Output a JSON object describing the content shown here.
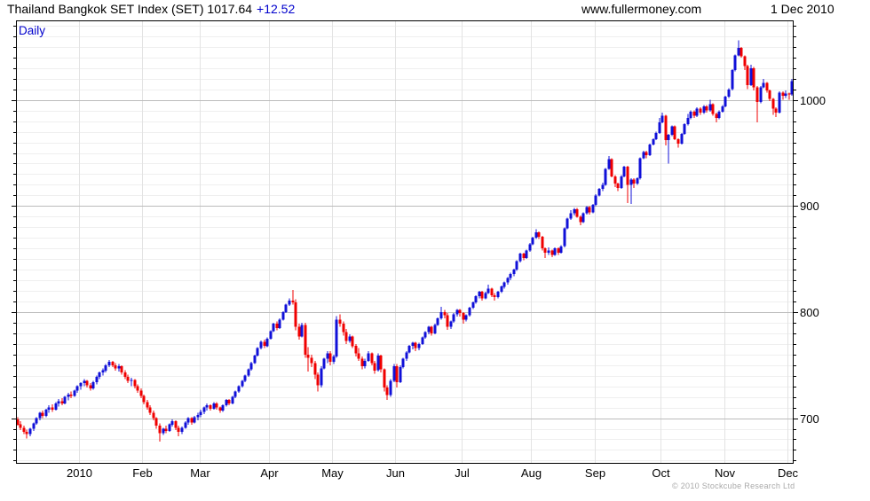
{
  "header": {
    "title_main": "Thailand Bangkok SET Index (SET) 1017.64",
    "title_change": "+12.52",
    "site": "www.fullermoney.com",
    "date": "1 Dec 2010"
  },
  "chart": {
    "interval_label": "Daily",
    "copyright": "© 2010 Stockcube Research Ltd"
  },
  "chart_data": {
    "type": "candlestick",
    "title": "Thailand Bangkok SET Index (SET)",
    "interval": "Daily",
    "last_close": 1017.64,
    "change": 12.52,
    "legend_position": "none",
    "grid": true,
    "y_axis": {
      "side": "right",
      "min": 657,
      "max": 1075,
      "major_ticks": [
        700,
        800,
        900,
        1000
      ],
      "minor_step": 10
    },
    "x_axis": {
      "labels": [
        "2010",
        "Feb",
        "Mar",
        "Apr",
        "May",
        "Jun",
        "Jul",
        "Aug",
        "Sep",
        "Oct",
        "Nov",
        "Dec"
      ],
      "days_per_month": [
        20,
        20,
        18,
        22,
        20,
        20,
        21,
        22,
        20,
        21,
        20,
        20,
        2
      ]
    },
    "colors": {
      "up": "#1010d8",
      "down": "#f00000",
      "grid_minor": "#efefef",
      "grid_vertical": "#e3e3e3",
      "grid_major": "#bcbcbc",
      "border": "#000000",
      "label": "#000000"
    },
    "ohlc": [
      [
        699,
        701,
        693,
        694
      ],
      [
        694,
        697,
        689,
        691
      ],
      [
        691,
        693,
        685,
        687
      ],
      [
        687,
        689,
        681,
        685
      ],
      [
        685,
        691,
        683,
        690
      ],
      [
        690,
        696,
        688,
        695
      ],
      [
        695,
        701,
        694,
        700
      ],
      [
        700,
        706,
        698,
        705
      ],
      [
        705,
        707,
        700,
        702
      ],
      [
        702,
        709,
        701,
        708
      ],
      [
        708,
        712,
        705,
        710
      ],
      [
        710,
        713,
        706,
        708
      ],
      [
        708,
        715,
        707,
        714
      ],
      [
        714,
        718,
        711,
        716
      ],
      [
        716,
        719,
        712,
        714
      ],
      [
        714,
        721,
        713,
        720
      ],
      [
        720,
        724,
        717,
        722
      ],
      [
        722,
        725,
        719,
        721
      ],
      [
        721,
        727,
        720,
        726
      ],
      [
        726,
        731,
        724,
        730
      ],
      [
        730,
        734,
        727,
        733
      ],
      [
        733,
        737,
        730,
        735
      ],
      [
        735,
        736,
        729,
        731
      ],
      [
        731,
        733,
        726,
        728
      ],
      [
        728,
        735,
        727,
        734
      ],
      [
        734,
        740,
        732,
        739
      ],
      [
        739,
        744,
        737,
        743
      ],
      [
        743,
        747,
        740,
        745
      ],
      [
        745,
        751,
        743,
        750
      ],
      [
        750,
        755,
        748,
        753
      ],
      [
        753,
        754,
        748,
        750
      ],
      [
        750,
        752,
        745,
        747
      ],
      [
        747,
        751,
        744,
        749
      ],
      [
        749,
        750,
        741,
        743
      ],
      [
        743,
        745,
        737,
        739
      ],
      [
        739,
        741,
        733,
        735
      ],
      [
        735,
        738,
        730,
        736
      ],
      [
        736,
        737,
        728,
        730
      ],
      [
        730,
        732,
        724,
        726
      ],
      [
        726,
        728,
        719,
        721
      ],
      [
        721,
        722,
        713,
        715
      ],
      [
        715,
        717,
        708,
        710
      ],
      [
        710,
        712,
        703,
        705
      ],
      [
        705,
        707,
        698,
        700
      ],
      [
        700,
        701,
        690,
        693
      ],
      [
        693,
        695,
        678,
        686
      ],
      [
        686,
        691,
        684,
        690
      ],
      [
        690,
        693,
        686,
        688
      ],
      [
        688,
        695,
        687,
        694
      ],
      [
        694,
        699,
        692,
        697
      ],
      [
        697,
        698,
        689,
        691
      ],
      [
        691,
        693,
        683,
        687
      ],
      [
        687,
        692,
        685,
        691
      ],
      [
        691,
        697,
        690,
        696
      ],
      [
        696,
        701,
        694,
        700
      ],
      [
        700,
        701,
        694,
        696
      ],
      [
        696,
        702,
        695,
        701
      ],
      [
        701,
        705,
        698,
        703
      ],
      [
        703,
        708,
        701,
        706
      ],
      [
        706,
        711,
        704,
        710
      ],
      [
        710,
        714,
        707,
        712
      ],
      [
        712,
        713,
        707,
        709
      ],
      [
        709,
        715,
        708,
        714
      ],
      [
        714,
        715,
        708,
        710
      ],
      [
        710,
        711,
        705,
        707
      ],
      [
        707,
        713,
        706,
        712
      ],
      [
        712,
        718,
        711,
        717
      ],
      [
        717,
        718,
        712,
        714
      ],
      [
        714,
        721,
        713,
        720
      ],
      [
        720,
        726,
        719,
        725
      ],
      [
        725,
        731,
        724,
        730
      ],
      [
        730,
        736,
        729,
        735
      ],
      [
        735,
        741,
        734,
        740
      ],
      [
        740,
        747,
        739,
        746
      ],
      [
        746,
        753,
        745,
        752
      ],
      [
        752,
        760,
        751,
        759
      ],
      [
        759,
        767,
        758,
        766
      ],
      [
        766,
        773,
        765,
        772
      ],
      [
        772,
        774,
        766,
        768
      ],
      [
        768,
        776,
        767,
        775
      ],
      [
        775,
        783,
        774,
        782
      ],
      [
        782,
        790,
        781,
        789
      ],
      [
        789,
        791,
        783,
        785
      ],
      [
        785,
        794,
        784,
        793
      ],
      [
        793,
        801,
        792,
        800
      ],
      [
        800,
        808,
        799,
        807
      ],
      [
        807,
        813,
        806,
        811
      ],
      [
        811,
        821,
        807,
        809
      ],
      [
        809,
        812,
        783,
        786
      ],
      [
        786,
        789,
        774,
        777
      ],
      [
        777,
        790,
        776,
        788
      ],
      [
        788,
        790,
        757,
        760
      ],
      [
        760,
        767,
        744,
        757
      ],
      [
        757,
        760,
        748,
        752
      ],
      [
        752,
        754,
        737,
        741
      ],
      [
        741,
        743,
        725,
        731
      ],
      [
        731,
        749,
        729,
        747
      ],
      [
        747,
        757,
        746,
        756
      ],
      [
        756,
        763,
        752,
        761
      ],
      [
        761,
        763,
        750,
        753
      ],
      [
        753,
        760,
        751,
        758
      ],
      [
        758,
        796,
        757,
        793
      ],
      [
        793,
        798,
        786,
        789
      ],
      [
        789,
        791,
        778,
        781
      ],
      [
        781,
        784,
        770,
        773
      ],
      [
        773,
        779,
        771,
        777
      ],
      [
        777,
        778,
        766,
        768
      ],
      [
        768,
        770,
        758,
        761
      ],
      [
        761,
        766,
        754,
        756
      ],
      [
        756,
        758,
        746,
        749
      ],
      [
        749,
        756,
        747,
        754
      ],
      [
        754,
        763,
        753,
        761
      ],
      [
        761,
        762,
        750,
        752
      ],
      [
        752,
        754,
        742,
        745
      ],
      [
        745,
        761,
        744,
        759
      ],
      [
        759,
        760,
        743,
        746
      ],
      [
        746,
        747,
        725,
        729
      ],
      [
        729,
        731,
        717,
        722
      ],
      [
        722,
        737,
        720,
        735
      ],
      [
        735,
        751,
        734,
        749
      ],
      [
        749,
        751,
        729,
        734
      ],
      [
        734,
        750,
        733,
        748
      ],
      [
        748,
        757,
        747,
        756
      ],
      [
        756,
        763,
        754,
        762
      ],
      [
        762,
        769,
        761,
        768
      ],
      [
        768,
        772,
        765,
        771
      ],
      [
        771,
        772,
        763,
        766
      ],
      [
        766,
        771,
        764,
        770
      ],
      [
        770,
        777,
        769,
        776
      ],
      [
        776,
        782,
        775,
        781
      ],
      [
        781,
        787,
        779,
        786
      ],
      [
        786,
        787,
        778,
        780
      ],
      [
        780,
        789,
        779,
        788
      ],
      [
        788,
        795,
        787,
        794
      ],
      [
        794,
        805,
        793,
        800
      ],
      [
        800,
        802,
        794,
        797
      ],
      [
        797,
        799,
        783,
        786
      ],
      [
        786,
        792,
        784,
        791
      ],
      [
        791,
        799,
        790,
        798
      ],
      [
        798,
        803,
        796,
        802
      ],
      [
        802,
        803,
        796,
        799
      ],
      [
        799,
        800,
        789,
        793
      ],
      [
        793,
        798,
        791,
        797
      ],
      [
        797,
        805,
        796,
        804
      ],
      [
        804,
        810,
        803,
        809
      ],
      [
        809,
        816,
        808,
        815
      ],
      [
        815,
        820,
        813,
        819
      ],
      [
        819,
        820,
        811,
        813
      ],
      [
        813,
        819,
        812,
        818
      ],
      [
        818,
        826,
        817,
        822
      ],
      [
        822,
        823,
        814,
        816
      ],
      [
        816,
        818,
        811,
        814
      ],
      [
        814,
        820,
        813,
        819
      ],
      [
        819,
        825,
        818,
        824
      ],
      [
        824,
        829,
        822,
        828
      ],
      [
        828,
        833,
        826,
        832
      ],
      [
        832,
        837,
        830,
        836
      ],
      [
        836,
        841,
        834,
        840
      ],
      [
        840,
        849,
        839,
        848
      ],
      [
        848,
        856,
        847,
        855
      ],
      [
        855,
        856,
        849,
        851
      ],
      [
        851,
        859,
        850,
        858
      ],
      [
        858,
        865,
        857,
        864
      ],
      [
        864,
        871,
        863,
        870
      ],
      [
        870,
        878,
        869,
        875
      ],
      [
        875,
        876,
        869,
        871
      ],
      [
        871,
        872,
        858,
        860
      ],
      [
        860,
        861,
        851,
        856
      ],
      [
        856,
        861,
        854,
        858
      ],
      [
        858,
        859,
        852,
        854
      ],
      [
        854,
        861,
        853,
        860
      ],
      [
        860,
        861,
        854,
        856
      ],
      [
        856,
        863,
        855,
        862
      ],
      [
        862,
        880,
        861,
        879
      ],
      [
        879,
        889,
        878,
        888
      ],
      [
        888,
        896,
        887,
        893
      ],
      [
        893,
        898,
        891,
        897
      ],
      [
        897,
        898,
        889,
        890
      ],
      [
        890,
        891,
        882,
        885
      ],
      [
        885,
        894,
        884,
        893
      ],
      [
        893,
        900,
        892,
        899
      ],
      [
        899,
        900,
        892,
        894
      ],
      [
        894,
        902,
        893,
        901
      ],
      [
        901,
        911,
        900,
        910
      ],
      [
        910,
        917,
        909,
        916
      ],
      [
        916,
        922,
        914,
        920
      ],
      [
        920,
        936,
        919,
        935
      ],
      [
        935,
        947,
        934,
        944
      ],
      [
        944,
        945,
        927,
        928
      ],
      [
        928,
        929,
        918,
        921
      ],
      [
        921,
        922,
        914,
        917
      ],
      [
        917,
        929,
        916,
        928
      ],
      [
        928,
        938,
        927,
        937
      ],
      [
        937,
        938,
        903,
        920
      ],
      [
        920,
        926,
        902,
        925
      ],
      [
        925,
        926,
        917,
        921
      ],
      [
        921,
        927,
        920,
        926
      ],
      [
        926,
        946,
        925,
        945
      ],
      [
        945,
        952,
        944,
        951
      ],
      [
        951,
        952,
        945,
        948
      ],
      [
        948,
        959,
        947,
        958
      ],
      [
        958,
        964,
        957,
        963
      ],
      [
        963,
        970,
        962,
        969
      ],
      [
        969,
        983,
        968,
        979
      ],
      [
        979,
        988,
        978,
        985
      ],
      [
        985,
        986,
        957,
        962
      ],
      [
        962,
        968,
        940,
        967
      ],
      [
        967,
        976,
        966,
        975
      ],
      [
        975,
        976,
        962,
        963
      ],
      [
        963,
        964,
        955,
        959
      ],
      [
        959,
        969,
        958,
        968
      ],
      [
        968,
        978,
        967,
        977
      ],
      [
        977,
        987,
        976,
        983
      ],
      [
        983,
        990,
        982,
        989
      ],
      [
        989,
        990,
        983,
        985
      ],
      [
        985,
        993,
        984,
        992
      ],
      [
        992,
        993,
        986,
        988
      ],
      [
        988,
        995,
        987,
        994
      ],
      [
        994,
        995,
        988,
        990
      ],
      [
        990,
        1000,
        989,
        996
      ],
      [
        996,
        997,
        985,
        987
      ],
      [
        987,
        988,
        979,
        983
      ],
      [
        983,
        990,
        982,
        989
      ],
      [
        989,
        995,
        988,
        994
      ],
      [
        994,
        1004,
        993,
        1003
      ],
      [
        1003,
        1011,
        1002,
        1010
      ],
      [
        1010,
        1029,
        1009,
        1028
      ],
      [
        1028,
        1043,
        1027,
        1042
      ],
      [
        1042,
        1056,
        1041,
        1049
      ],
      [
        1049,
        1050,
        1040,
        1041
      ],
      [
        1041,
        1042,
        1028,
        1032
      ],
      [
        1032,
        1033,
        1010,
        1014
      ],
      [
        1014,
        1033,
        1013,
        1030
      ],
      [
        1030,
        1031,
        1009,
        1012
      ],
      [
        1012,
        1013,
        979,
        998
      ],
      [
        998,
        1013,
        997,
        1012
      ],
      [
        1012,
        1020,
        1011,
        1016
      ],
      [
        1016,
        1017,
        1007,
        1009
      ],
      [
        1009,
        1010,
        999,
        1001
      ],
      [
        1001,
        1002,
        986,
        992
      ],
      [
        992,
        993,
        984,
        988
      ],
      [
        988,
        1008,
        987,
        1007
      ],
      [
        1007,
        1008,
        1000,
        1004
      ],
      [
        1004,
        1009,
        1002,
        1006
      ],
      [
        1006,
        1007,
        1000,
        1005
      ],
      [
        1005,
        1020,
        1004,
        1017.64
      ]
    ]
  }
}
